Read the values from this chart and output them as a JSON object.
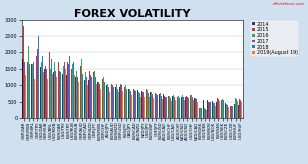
{
  "title": "FOREX VOLATILITY",
  "watermark": "effortsforex.com",
  "years": [
    "2014",
    "2015",
    "2016",
    "2017",
    "2018",
    "2019(August 19)"
  ],
  "colors": [
    "#1f3c88",
    "#c0392b",
    "#27ae60",
    "#8e44ad",
    "#2980b9",
    "#e67e22"
  ],
  "ylim": [
    0,
    3000
  ],
  "yticks": [
    0,
    500,
    1000,
    1500,
    2000,
    2500,
    3000
  ],
  "pairs": [
    "GBP/ZAR",
    "GBP/MXN",
    "GBP/BRL",
    "GBP/TRY",
    "USD/ZAR",
    "GBP/RUB",
    "USD/BRL",
    "USD/MXN",
    "EUR/ZAR",
    "USD/TRY",
    "EUR/TRY",
    "USD/RUB",
    "EUR/RUB",
    "GBP/AUD",
    "GBP/CAD",
    "GBP/NZD",
    "GBP/JPY",
    "EUR/MXN",
    "GBP/CHF",
    "AUD/JPY",
    "EUR/AUD",
    "EUR/NZD",
    "GBP/USD",
    "EUR/JPY",
    "CAD/JPY",
    "EUR/CAD",
    "AUD/NZD",
    "NZD/JPY",
    "USD/JPY",
    "EUR/GBP",
    "CHF/JPY",
    "EUR/USD",
    "AUD/CAD",
    "EUR/CHF",
    "USD/CAD",
    "AUD/CHF",
    "NZD/USD",
    "AUD/USD",
    "USD/CHF",
    "NZD/CAD",
    "EUR/DKK",
    "USD/DKK",
    "EUR/NOK",
    "USD/NOK",
    "EUR/SEK",
    "USD/SEK",
    "EUR/CZK",
    "USD/CZK",
    "EUR/HUF",
    "USD/HUF"
  ],
  "data": {
    "2014": [
      1800,
      1700,
      1650,
      1600,
      1550,
      1500,
      1450,
      1400,
      1400,
      1350,
      1300,
      1300,
      1250,
      1200,
      1150,
      1150,
      1100,
      1100,
      1050,
      1000,
      1000,
      950,
      950,
      900,
      900,
      850,
      850,
      820,
      800,
      780,
      750,
      730,
      720,
      700,
      680,
      660,
      650,
      630,
      620,
      600,
      580,
      560,
      540,
      520,
      500,
      480,
      460,
      440,
      420,
      400
    ],
    "2015": [
      2800,
      1700,
      2600,
      1900,
      2100,
      1600,
      2000,
      1800,
      1700,
      1500,
      1700,
      1500,
      1350,
      1600,
      1300,
      1450,
      1400,
      1100,
      1200,
      1000,
      1050,
      1000,
      1050,
      950,
      850,
      900,
      800,
      800,
      900,
      750,
      750,
      700,
      680,
      660,
      750,
      650,
      680,
      670,
      700,
      620,
      300,
      280,
      500,
      450,
      600,
      550,
      400,
      380,
      600,
      580
    ],
    "2016": [
      2300,
      2200,
      1650,
      2200,
      1700,
      1600,
      1500,
      1700,
      1700,
      1600,
      1600,
      1650,
      1450,
      1800,
      1400,
      1550,
      1450,
      1150,
      1250,
      1050,
      1100,
      1050,
      1100,
      1000,
      900,
      900,
      800,
      850,
      850,
      800,
      800,
      750,
      700,
      680,
      700,
      670,
      700,
      690,
      700,
      640,
      320,
      300,
      520,
      470,
      620,
      570,
      420,
      400,
      620,
      600
    ],
    "2017": [
      1700,
      1600,
      1700,
      2100,
      1400,
      1500,
      1400,
      1450,
      1450,
      1700,
      1650,
      1400,
      1250,
      1400,
      1250,
      1300,
      1300,
      1050,
      1150,
      950,
      1000,
      950,
      1000,
      900,
      820,
      850,
      750,
      780,
      780,
      720,
      720,
      680,
      640,
      640,
      640,
      620,
      640,
      630,
      640,
      590,
      300,
      280,
      480,
      430,
      580,
      530,
      390,
      370,
      570,
      550
    ],
    "2018": [
      1600,
      1650,
      1500,
      2500,
      1900,
      1500,
      1800,
      1600,
      1400,
      2000,
      1900,
      1700,
      1400,
      1350,
      1200,
      1250,
      1250,
      1100,
      1100,
      950,
      950,
      900,
      950,
      880,
      820,
      820,
      750,
      750,
      750,
      700,
      700,
      670,
      630,
      620,
      640,
      610,
      630,
      620,
      640,
      580,
      320,
      300,
      500,
      450,
      610,
      560,
      400,
      380,
      590,
      570
    ],
    "2019(August 19)": [
      1300,
      1350,
      1200,
      1800,
      1400,
      1200,
      1350,
      1250,
      1150,
      1500,
      1450,
      1300,
      1100,
      1100,
      1000,
      1050,
      1050,
      900,
      950,
      800,
      820,
      780,
      820,
      750,
      700,
      700,
      650,
      640,
      640,
      600,
      600,
      580,
      540,
      530,
      560,
      520,
      540,
      530,
      550,
      500,
      260,
      250,
      420,
      380,
      520,
      480,
      340,
      320,
      510,
      490
    ]
  },
  "background_color": "#cfe0f0",
  "plot_bg_color": "#ffffff",
  "grid_color": "#bbbbbb",
  "fontsize_title": 8,
  "fontsize_yticks": 3.5,
  "fontsize_xticks": 2.8,
  "fontsize_legend": 3.5,
  "legend_marker_size": 5
}
